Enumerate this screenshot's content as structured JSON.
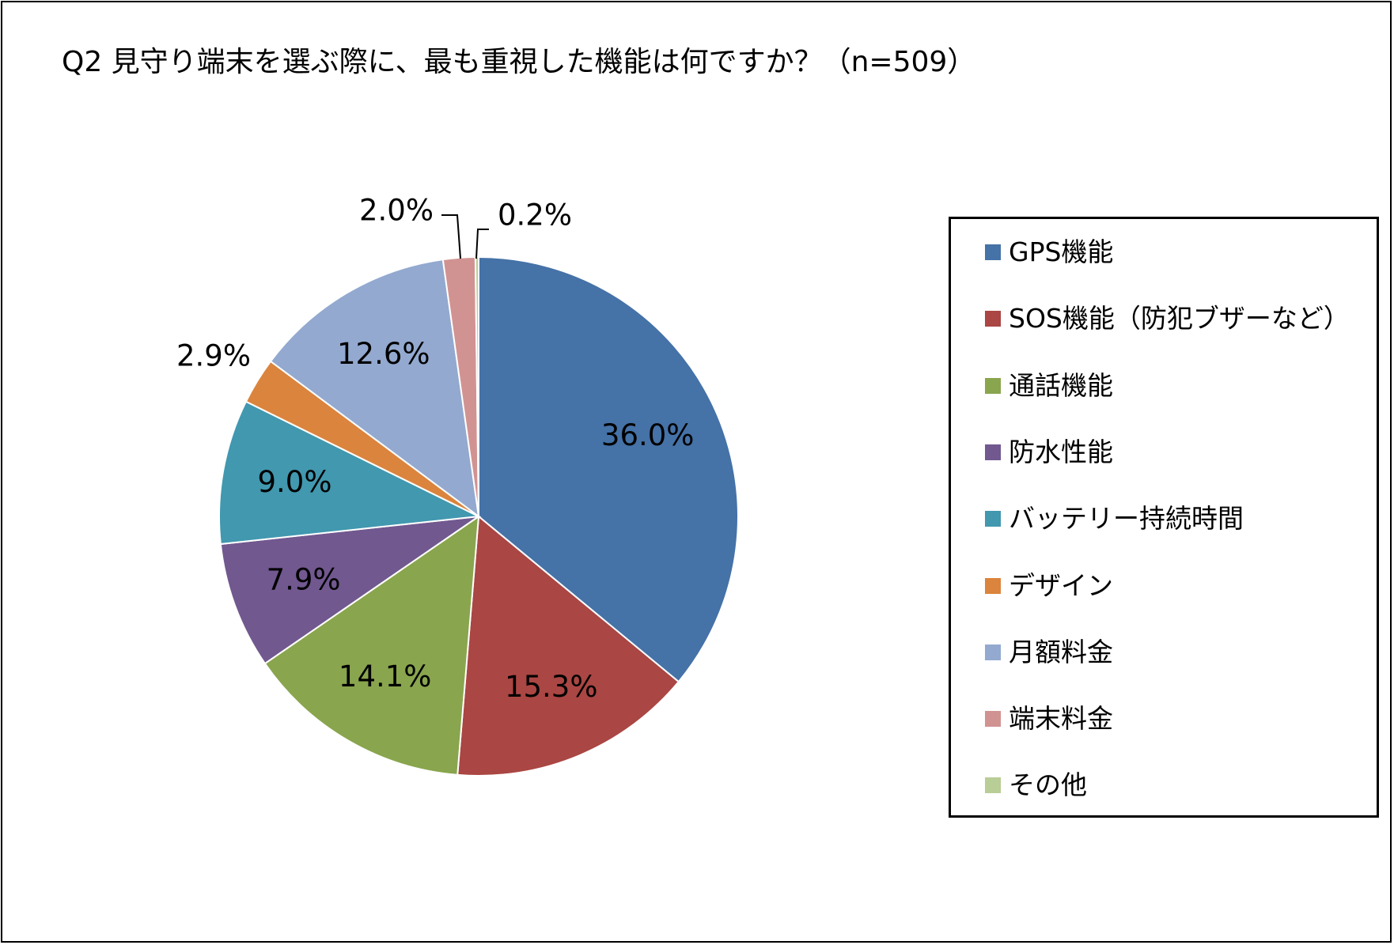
{
  "chart_data": {
    "type": "pie",
    "title": "Q2 見守り端末を選ぶ際に、最も重視した機能は何ですか？（n=509）",
    "categories": [
      "GPS機能",
      "SOS機能（防犯ブザーなど）",
      "通話機能",
      "防水性能",
      "バッテリー持続時間",
      "デザイン",
      "月額料金",
      "端末料金",
      "その他"
    ],
    "values": [
      36.0,
      15.3,
      14.1,
      7.9,
      9.0,
      2.9,
      12.6,
      2.0,
      0.2
    ],
    "labels": [
      "36.0%",
      "15.3%",
      "14.1%",
      "7.9%",
      "9.0%",
      "2.9%",
      "12.6%",
      "2.0%",
      "0.2%"
    ],
    "colors": [
      "#4572A7",
      "#AA4643",
      "#89A54E",
      "#71588F",
      "#4198AF",
      "#DB843D",
      "#93A9CF",
      "#D19392",
      "#B9CD96"
    ],
    "legend_position": "right",
    "start": "12 o'clock, clockwise"
  }
}
